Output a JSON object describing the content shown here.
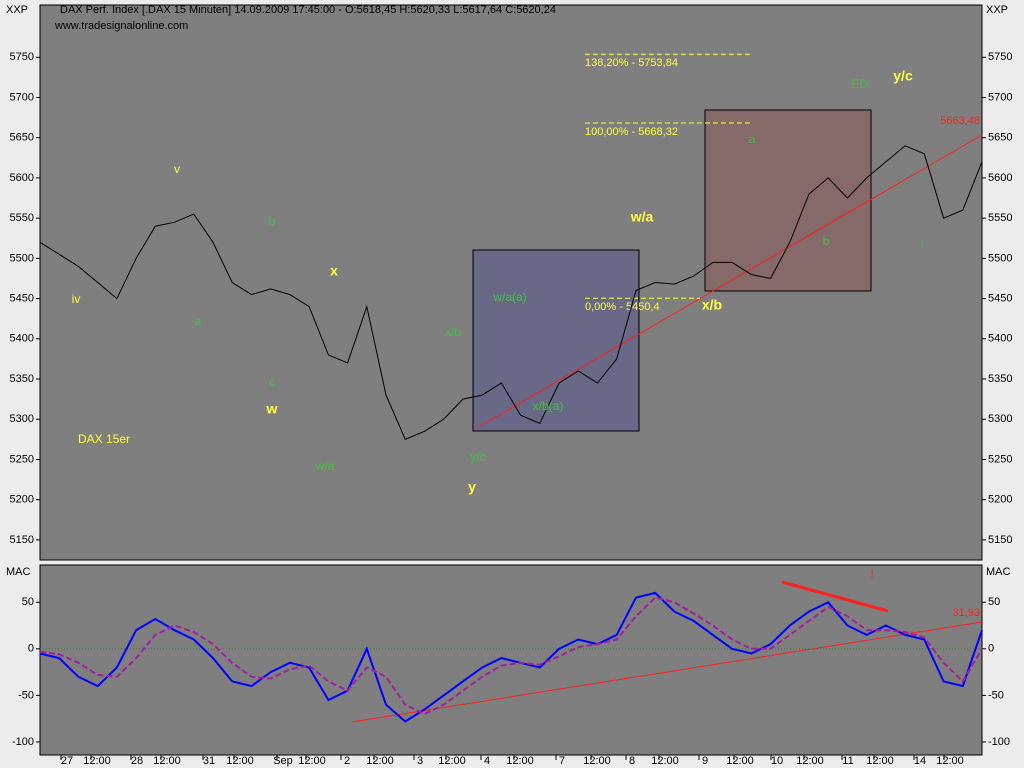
{
  "header": {
    "title": "DAX Perf. Index [.DAX  15 Minuten] 14.09.2009 17:45:00 - O:5618,45 H:5620,33 L:5617,64 C:5620,24",
    "source": "www.tradesignalonline.com"
  },
  "xtick_labels": [
    "27",
    "12:00",
    "28",
    "12:00",
    "31",
    "12:00",
    "Sep",
    "12:00",
    "2",
    "12:00",
    "3",
    "12:00",
    "4",
    "12:00",
    "7",
    "12:00",
    "8",
    "12:00",
    "9",
    "12:00",
    "10",
    "12:00",
    "11",
    "12:00",
    "14",
    "12:00"
  ],
  "chart_data": [
    {
      "type": "line",
      "axis_label": "XXP",
      "ylim": [
        5125,
        5815
      ],
      "yticks": [
        5150,
        5200,
        5250,
        5300,
        5350,
        5400,
        5450,
        5500,
        5550,
        5600,
        5650,
        5700,
        5750
      ],
      "series": [
        {
          "color": "#000000",
          "values": [
            5520,
            5505,
            5490,
            5470,
            5450,
            5500,
            5540,
            5545,
            5555,
            5520,
            5470,
            5455,
            5462,
            5455,
            5440,
            5380,
            5370,
            5440,
            5330,
            5275,
            5285,
            5300,
            5325,
            5330,
            5345,
            5305,
            5295,
            5345,
            5360,
            5345,
            5375,
            5460,
            5470,
            5468,
            5478,
            5495,
            5495,
            5480,
            5475,
            5520,
            5580,
            5600,
            5575,
            5600,
            5620,
            5640,
            5630,
            5550,
            5560,
            5620
          ]
        }
      ],
      "fib_levels": [
        {
          "value": 5753.84,
          "label": "138,20% - 5753,84"
        },
        {
          "value": 5668.32,
          "label": "100,00% - 5668,32"
        },
        {
          "value": 5450.4,
          "label": "0,00% - 5450,4"
        }
      ],
      "last_label": {
        "value": 5663.48,
        "label": "5663,48"
      },
      "annotations": [
        "iv",
        "v",
        "a",
        "b",
        "c",
        "w",
        "x",
        "w/a",
        "x/b",
        "w/a(a)",
        "x/b(a)",
        "y/c",
        "y",
        "w/a",
        "x/b",
        "a",
        "b",
        "ED",
        "y/c",
        "i",
        "DAX 15er",
        "!"
      ]
    },
    {
      "type": "line",
      "axis_label": "MAC",
      "ylim": [
        -114,
        90
      ],
      "yticks": [
        -100,
        -50,
        0,
        50
      ],
      "series": [
        {
          "color": "#0000ff",
          "values": [
            -5,
            -10,
            -30,
            -40,
            -20,
            20,
            32,
            20,
            10,
            -10,
            -35,
            -40,
            -25,
            -15,
            -20,
            -55,
            -45,
            0,
            -60,
            -78,
            -65,
            -50,
            -35,
            -20,
            -10,
            -15,
            -20,
            0,
            10,
            5,
            15,
            55,
            60,
            40,
            30,
            15,
            0,
            -5,
            5,
            25,
            40,
            50,
            25,
            15,
            25,
            15,
            10,
            -35,
            -40,
            20
          ]
        },
        {
          "color": "#a020a0",
          "values": [
            -3,
            -6,
            -15,
            -28,
            -30,
            -10,
            15,
            25,
            18,
            5,
            -15,
            -30,
            -32,
            -22,
            -18,
            -35,
            -45,
            -20,
            -30,
            -60,
            -70,
            -60,
            -45,
            -30,
            -18,
            -15,
            -17,
            -8,
            2,
            5,
            10,
            35,
            55,
            50,
            38,
            25,
            10,
            0,
            0,
            15,
            30,
            45,
            35,
            20,
            20,
            18,
            12,
            -15,
            -35,
            0
          ]
        }
      ],
      "last_label": {
        "value": 31.93,
        "label": "31,93"
      }
    }
  ]
}
